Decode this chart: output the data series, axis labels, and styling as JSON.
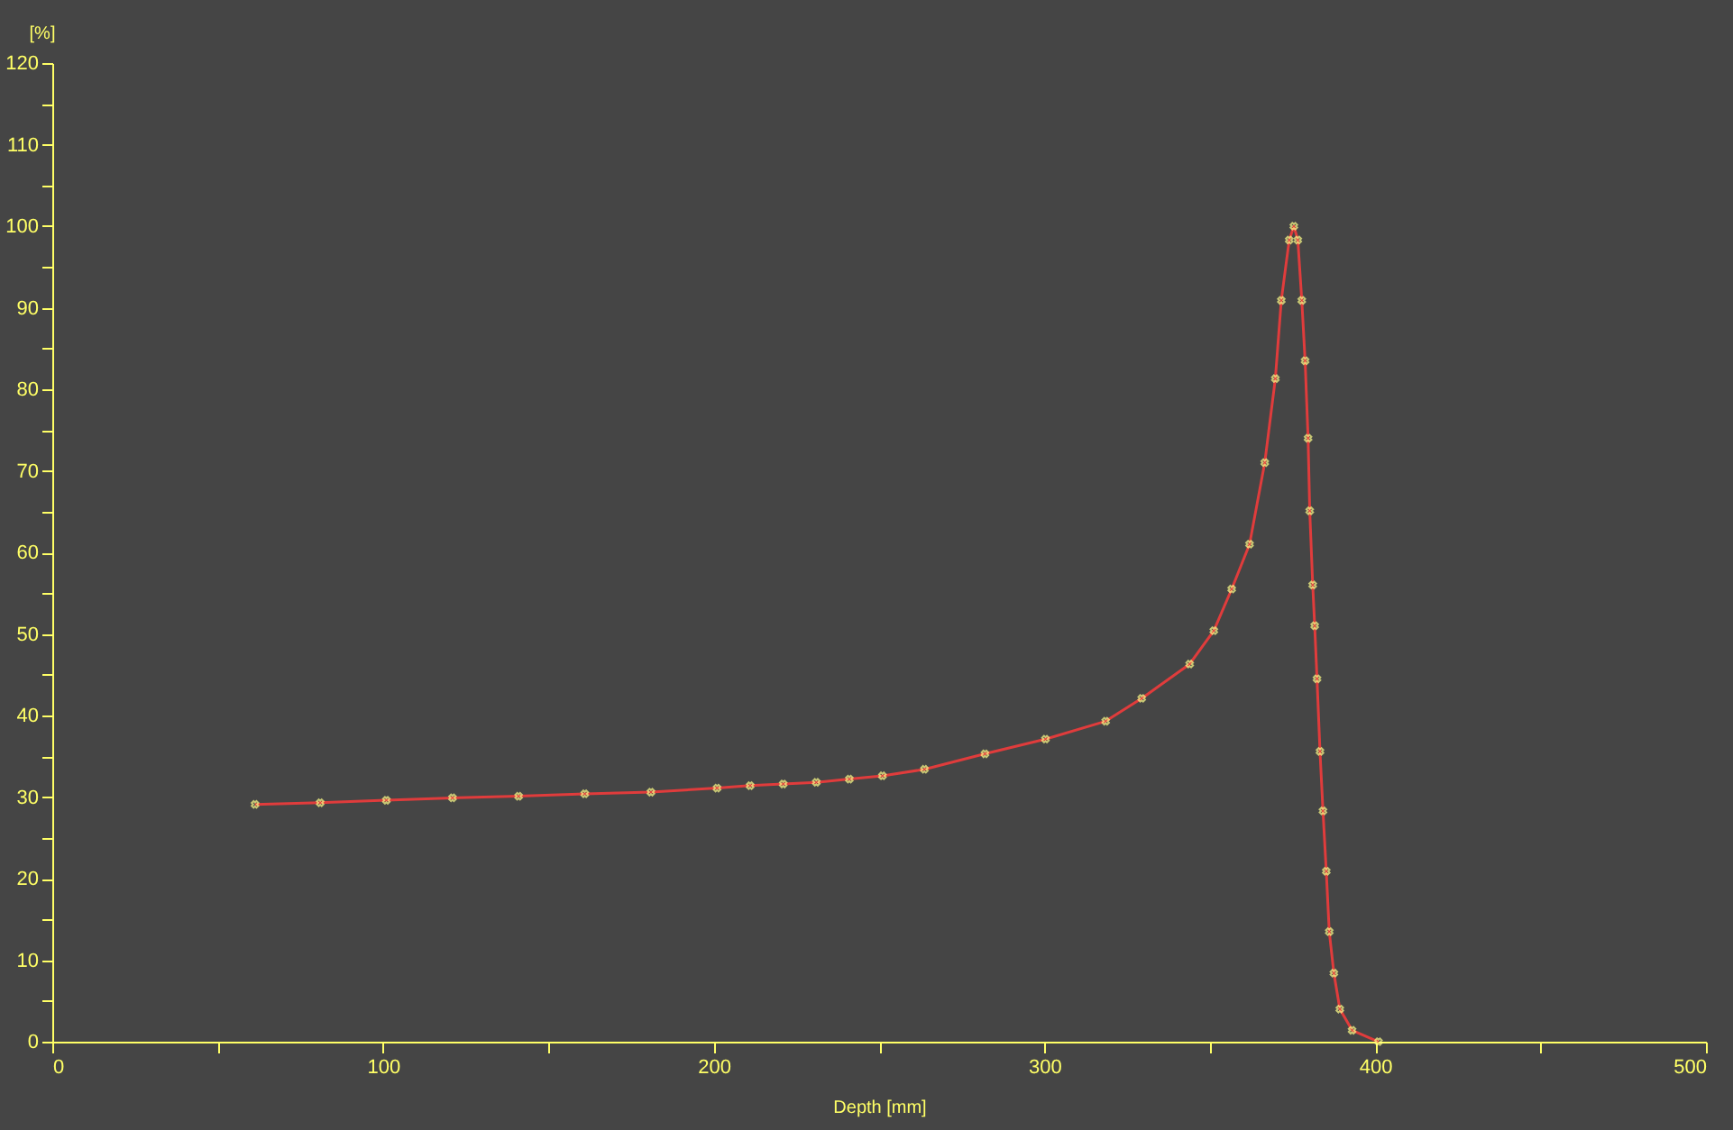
{
  "chart_data": {
    "type": "line",
    "xlabel": "Depth [mm]",
    "ylabel": "[%]",
    "x": [
      61.3,
      81,
      101,
      121,
      141,
      161,
      181,
      201,
      211,
      221,
      231,
      241,
      251,
      263.7,
      282,
      300.3,
      318.5,
      329.4,
      343.9,
      351.2,
      356.6,
      362,
      366.6,
      369.8,
      371.6,
      374,
      375.4,
      376.6,
      377.8,
      378.8,
      379.7,
      380.2,
      381.1,
      381.7,
      382.4,
      383.3,
      384.2,
      385.2,
      386.1,
      387.5,
      389.3,
      393,
      401
    ],
    "series": [
      {
        "color": "#e03c3c",
        "values": [
          29.1,
          29.3,
          29.6,
          29.9,
          30.1,
          30.4,
          30.6,
          31.1,
          31.4,
          31.6,
          31.8,
          32.2,
          32.6,
          33.4,
          35.3,
          37.1,
          39.3,
          42.1,
          46.3,
          50.4,
          55.5,
          61,
          71,
          81.3,
          90.9,
          98.3,
          100,
          98.3,
          90.9,
          83.5,
          74,
          65.1,
          56,
          51,
          44.5,
          35.6,
          28.3,
          20.9,
          13.5,
          8.4,
          4,
          1.4,
          0
        ]
      }
    ],
    "xlim": [
      0,
      500
    ],
    "xticks": [
      0,
      {
        "value": 50,
        "label": null
      },
      100,
      {
        "value": 150,
        "label": null
      },
      200,
      {
        "value": 250,
        "label": null
      },
      300,
      {
        "value": 350,
        "label": null
      },
      400,
      {
        "value": 450,
        "label": null
      },
      500
    ],
    "ylim": [
      0,
      120
    ],
    "yticks": [
      0,
      {
        "value": 5,
        "label": null
      },
      10,
      {
        "value": 15,
        "label": null
      },
      20,
      {
        "value": 25,
        "label": null
      },
      30,
      {
        "value": 35,
        "label": null
      },
      40,
      {
        "value": 45,
        "label": null
      },
      50,
      {
        "value": 55,
        "label": null
      },
      60,
      {
        "value": 65,
        "label": null
      },
      70,
      {
        "value": 75,
        "label": null
      },
      80,
      {
        "value": 85,
        "label": null
      },
      90,
      {
        "value": 95,
        "label": null
      },
      100,
      {
        "value": 105,
        "label": null
      },
      110,
      {
        "value": 115,
        "label": null
      },
      120
    ],
    "grid": false,
    "marker": "cross",
    "line_style": "solid"
  }
}
